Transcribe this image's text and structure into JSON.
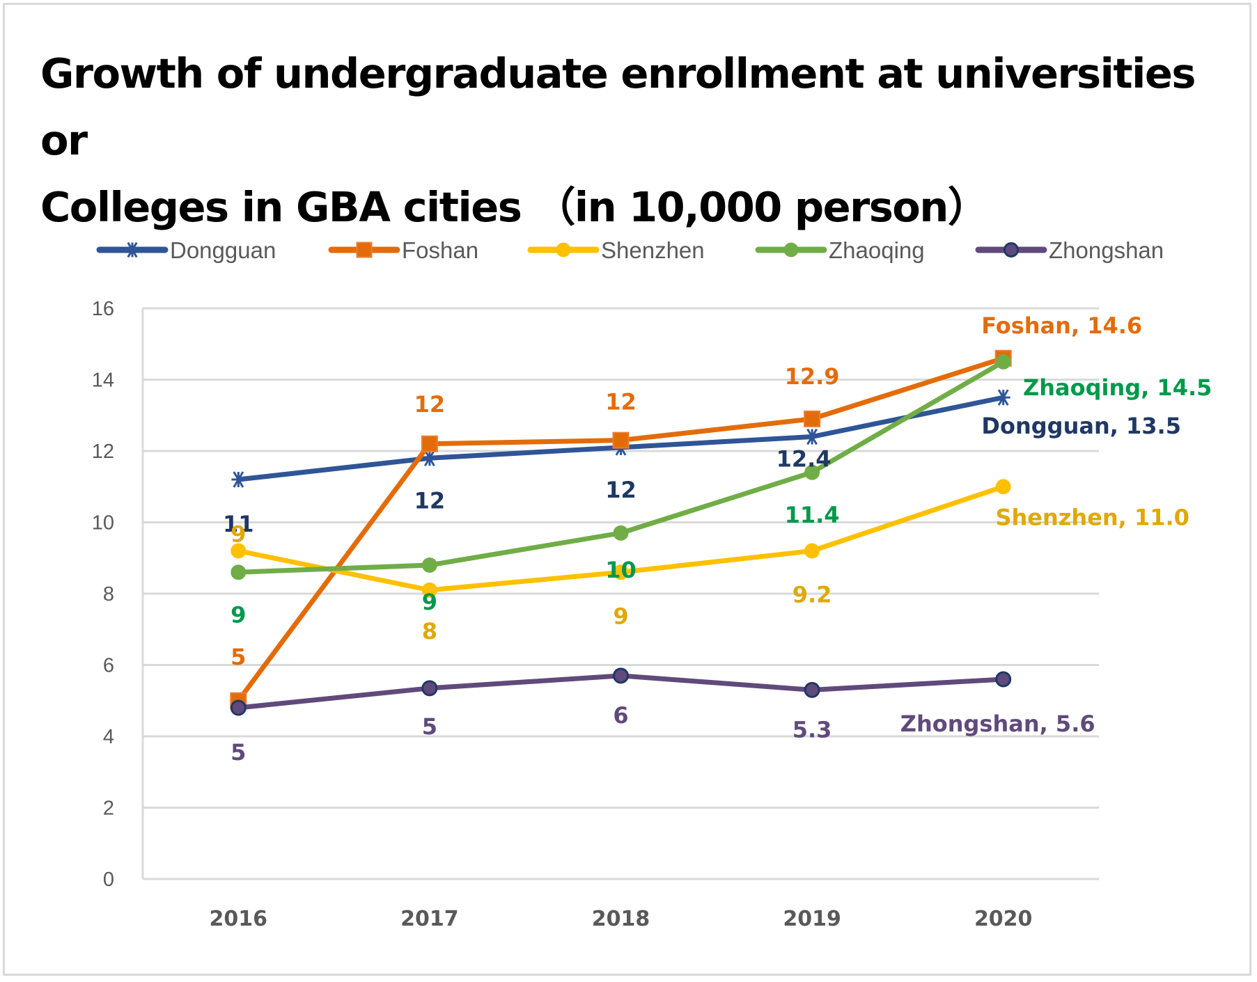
{
  "chart_data": {
    "type": "line",
    "title": "Growth of undergraduate enrollment at universities or Colleges in GBA cities （in 10,000 person）",
    "title_lines": [
      "Growth of undergraduate enrollment at universities or",
      "Colleges in GBA cities （in 10,000 person）"
    ],
    "xlabel": "",
    "ylabel": "",
    "categories": [
      "2016",
      "2017",
      "2018",
      "2019",
      "2020"
    ],
    "ylim": [
      0,
      16
    ],
    "yticks": [
      0,
      2,
      4,
      6,
      8,
      10,
      12,
      14,
      16
    ],
    "grid": true,
    "legend_position": "top",
    "series": [
      {
        "name": "Dongguan",
        "color": "#2f5597",
        "label_color": "#1f3864",
        "marker": "asterisk",
        "values": [
          11.2,
          11.8,
          12.1,
          12.4,
          13.5
        ],
        "labels": [
          "11",
          "12",
          "12",
          "12.4",
          "Dongguan, 13.5"
        ]
      },
      {
        "name": "Foshan",
        "color": "#e36c0a",
        "label_color": "#e36c0a",
        "marker": "square",
        "values": [
          5.0,
          12.2,
          12.3,
          12.9,
          14.6
        ],
        "labels": [
          "5",
          "12",
          "12",
          "12.9",
          "Foshan, 14.6"
        ]
      },
      {
        "name": "Shenzhen",
        "color": "#ffc000",
        "label_color": "#e0a800",
        "marker": "circle",
        "values": [
          9.2,
          8.1,
          8.6,
          9.2,
          11.0
        ],
        "labels": [
          "9",
          "8",
          "9",
          "9.2",
          "Shenzhen, 11.0"
        ]
      },
      {
        "name": "Zhaoqing",
        "color": "#70ad47",
        "label_color": "#00994c",
        "marker": "circle",
        "values": [
          8.6,
          8.8,
          9.7,
          11.4,
          14.5
        ],
        "labels": [
          "9",
          "9",
          "10",
          "11.4",
          "Zhaoqing, 14.5"
        ]
      },
      {
        "name": "Zhongshan",
        "color": "#604a7b",
        "label_color": "#604a7b",
        "marker": "circle-outlined",
        "marker_edge": "#1f3864",
        "values": [
          4.8,
          5.35,
          5.7,
          5.3,
          5.6
        ],
        "labels": [
          "5",
          "5",
          "6",
          "5.3",
          "Zhongshan, 5.6"
        ]
      }
    ]
  }
}
